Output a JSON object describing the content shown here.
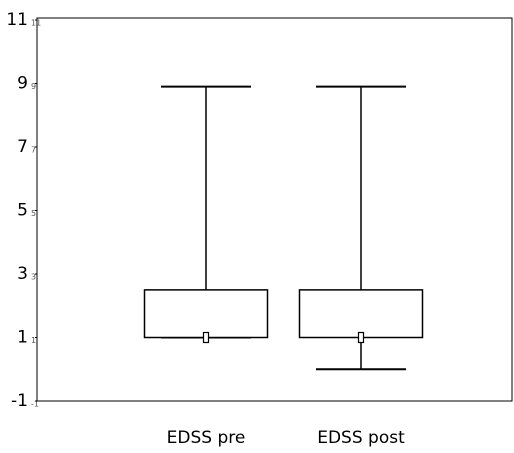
{
  "chart_data": {
    "type": "box",
    "categories": [
      "EDSS pre",
      "EDSS post"
    ],
    "boxes": [
      {
        "min": 1,
        "q1": 1,
        "median": 1,
        "q3": 2.5,
        "max": 8.9
      },
      {
        "min": 0,
        "q1": 1,
        "median": 1,
        "q3": 2.5,
        "max": 8.9
      }
    ],
    "color": "#000000",
    "ylim": [
      -1,
      11
    ],
    "yticks": [
      -1,
      1,
      3,
      5,
      7,
      9,
      11
    ]
  }
}
